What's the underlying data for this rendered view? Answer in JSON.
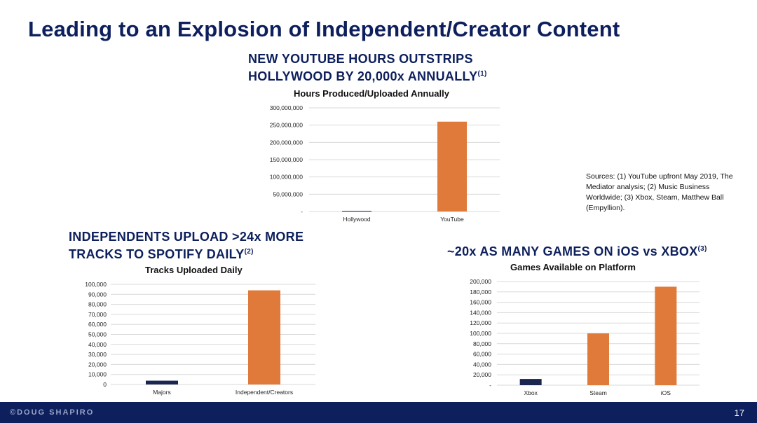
{
  "slide": {
    "title": "Leading to an Explosion of Independent/Creator Content",
    "page_number": "17",
    "brand": "©DOUG SHAPIRO",
    "sources": "Sources: (1) YouTube upfront May 2019, The Mediator analysis; (2) Music Business Worldwide; (3) Xbox, Steam, Matthew Ball (Empyllion)."
  },
  "sections": {
    "youtube": {
      "line1": "NEW YOUTUBE HOURS OUTSTRIPS",
      "line2": "HOLLYWOOD BY 20,000x ANNUALLY",
      "note": "(1)"
    },
    "spotify": {
      "line1": "INDEPENDENTS UPLOAD >24x MORE",
      "line2": "TRACKS TO SPOTIFY DAILY",
      "note": "(2)"
    },
    "games": {
      "line1": "~20x AS MANY GAMES ON iOS vs XBOX",
      "note": "(3)"
    }
  },
  "colors": {
    "navy": "#0d1f5c",
    "orange": "#e07a3a",
    "dark_bar": "#1a2550",
    "grid": "#d9d9d9"
  },
  "chart_data": [
    {
      "type": "bar",
      "title": "Hours Produced/Uploaded Annually",
      "categories": [
        "Hollywood",
        "YouTube"
      ],
      "values": [
        13000,
        260000000
      ],
      "colors": [
        "#1a2550",
        "#e07a3a"
      ],
      "ylim": [
        0,
        300000000
      ],
      "yticks": [
        0,
        50000000,
        100000000,
        150000000,
        200000000,
        250000000,
        300000000
      ],
      "yticklabels": [
        "-",
        "50,000,000",
        "100,000,000",
        "150,000,000",
        "200,000,000",
        "250,000,000",
        "300,000,000"
      ]
    },
    {
      "type": "bar",
      "title": "Tracks Uploaded Daily",
      "categories": [
        "Majors",
        "Independent/Creators"
      ],
      "values": [
        3800,
        94000
      ],
      "colors": [
        "#1a2550",
        "#e07a3a"
      ],
      "ylim": [
        0,
        100000
      ],
      "yticks": [
        0,
        10000,
        20000,
        30000,
        40000,
        50000,
        60000,
        70000,
        80000,
        90000,
        100000
      ],
      "yticklabels": [
        "0",
        "10,000",
        "20,000",
        "30,000",
        "40,000",
        "50,000",
        "60,000",
        "70,000",
        "80,000",
        "90,000",
        "100,000"
      ]
    },
    {
      "type": "bar",
      "title": "Games Available on Platform",
      "categories": [
        "Xbox",
        "Steam",
        "iOS"
      ],
      "values": [
        12000,
        100000,
        190000
      ],
      "colors": [
        "#1a2550",
        "#e07a3a",
        "#e07a3a"
      ],
      "ylim": [
        0,
        200000
      ],
      "yticks": [
        0,
        20000,
        40000,
        60000,
        80000,
        100000,
        120000,
        140000,
        160000,
        180000,
        200000
      ],
      "yticklabels": [
        "-",
        "20,000",
        "40,000",
        "60,000",
        "80,000",
        "100,000",
        "120,000",
        "140,000",
        "160,000",
        "180,000",
        "200,000"
      ]
    }
  ]
}
